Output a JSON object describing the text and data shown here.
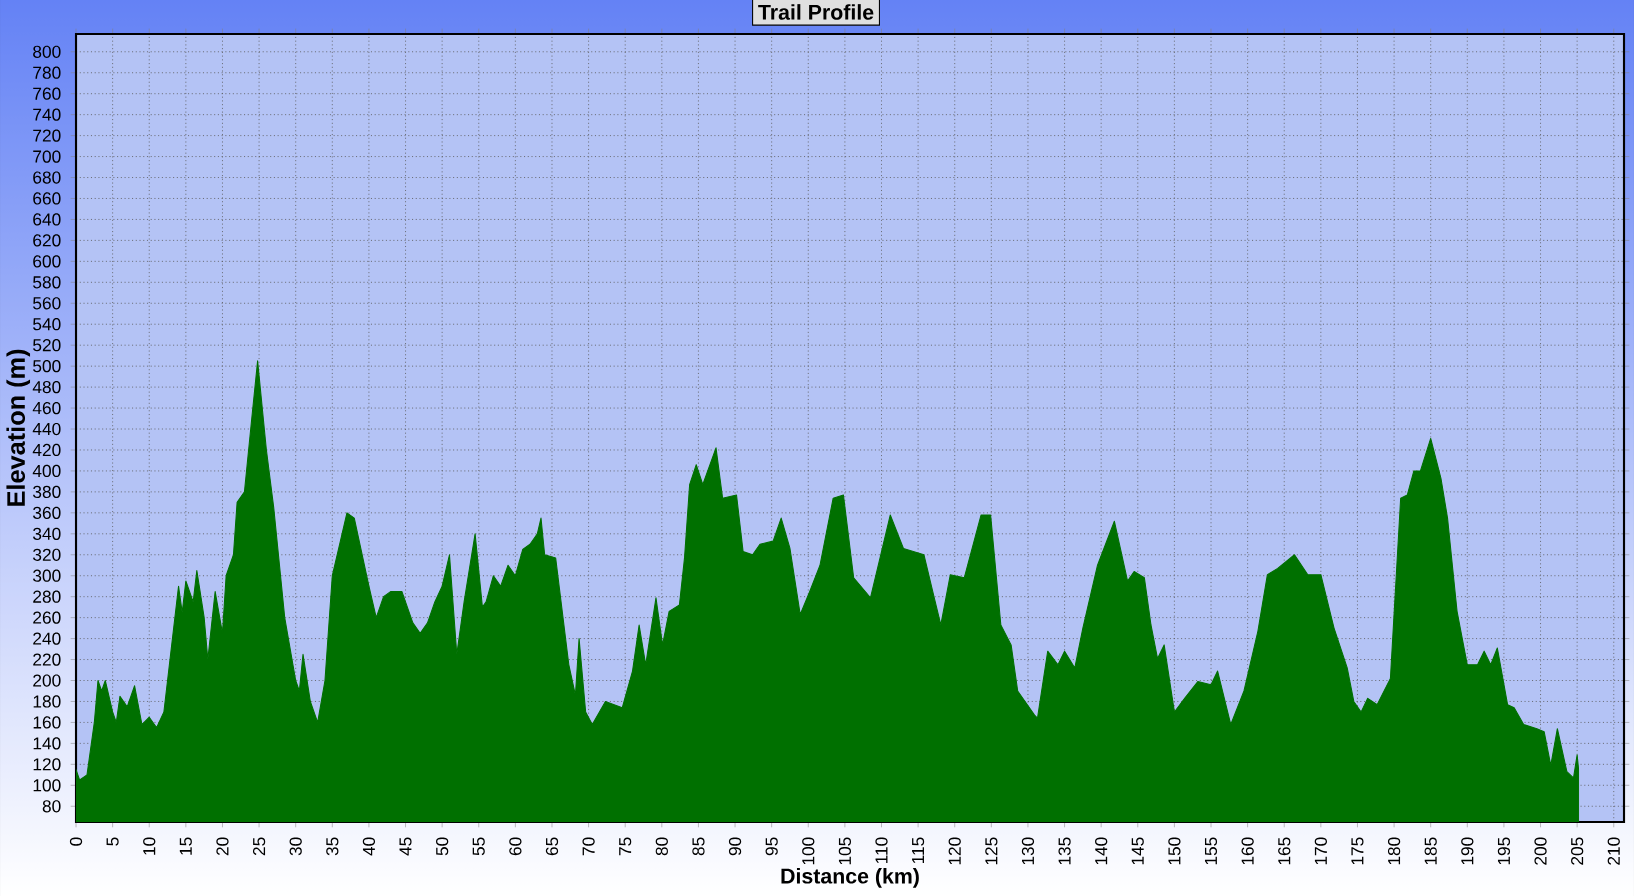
{
  "chart_data": {
    "type": "area",
    "title": "Trail Profile",
    "xlabel": "Distance (km)",
    "ylabel": "Elevation (m)",
    "x": [
      0,
      0.5,
      1.5,
      2.5,
      3,
      3.5,
      4,
      5,
      5.5,
      6,
      7,
      8,
      9,
      10,
      11,
      12,
      13,
      14,
      14.5,
      15,
      16,
      16.5,
      17.5,
      18,
      19,
      20,
      20.5,
      21.5,
      22,
      23,
      24,
      24.8,
      26,
      27,
      27.5,
      28.5,
      30,
      30.5,
      31,
      32,
      33,
      34,
      35,
      36,
      37,
      38,
      40,
      41,
      42,
      43,
      44.5,
      46,
      47,
      48,
      49,
      50,
      51,
      52,
      53,
      54.5,
      55.5,
      56,
      57,
      58,
      59,
      60,
      61,
      62,
      63,
      63.5,
      64,
      65.5,
      67.3,
      68.2,
      68.7,
      69.6,
      70.5,
      72.3,
      74.6,
      76,
      76.9,
      77.8,
      79.2,
      80.1,
      81,
      82.4,
      83.1,
      83.8,
      84.7,
      85.6,
      87.4,
      88.3,
      90.2,
      91.1,
      92.4,
      93.4,
      95.2,
      96.3,
      97.5,
      98.9,
      100.2,
      101.6,
      103.4,
      104.8,
      106.2,
      108.5,
      109.8,
      111.2,
      113,
      115.8,
      117.2,
      118.1,
      119.4,
      121.3,
      123.6,
      124.9,
      126.3,
      127.7,
      128.6,
      130.9,
      131.3,
      132.7,
      134.1,
      135,
      136.4,
      137.5,
      139.5,
      141.8,
      143.6,
      144.5,
      145.9,
      146.8,
      147.7,
      148.6,
      150,
      151.4,
      153.2,
      155,
      155.9,
      157.7,
      159.5,
      161.4,
      162.7,
      164.1,
      166.4,
      168.2,
      170,
      171.8,
      173.6,
      174.5,
      175.5,
      176.4,
      177.7,
      179.5,
      180.9,
      181.8,
      182.7,
      183.6,
      185,
      186.4,
      187.3,
      188.6,
      190,
      191.4,
      192.3,
      193.2,
      194.1,
      195.5,
      196.4,
      197.7,
      199.5,
      200.5,
      201.4,
      202.3,
      203.6,
      204.5,
      205,
      205.2
    ],
    "values": [
      115,
      105,
      110,
      160,
      200,
      190,
      200,
      170,
      160,
      185,
      175,
      195,
      158,
      165,
      155,
      170,
      230,
      290,
      265,
      295,
      275,
      305,
      260,
      220,
      285,
      245,
      300,
      320,
      370,
      380,
      450,
      505,
      420,
      365,
      330,
      260,
      200,
      190,
      225,
      180,
      160,
      200,
      300,
      330,
      360,
      355,
      290,
      260,
      280,
      285,
      285,
      255,
      245,
      255,
      275,
      290,
      320,
      225,
      275,
      340,
      270,
      275,
      300,
      290,
      310,
      300,
      325,
      330,
      340,
      355,
      320,
      317,
      215,
      186,
      240,
      170,
      158,
      180,
      174,
      209,
      253,
      215,
      279,
      234,
      266,
      272,
      317,
      387,
      406,
      387,
      422,
      374,
      377,
      323,
      320,
      330,
      333,
      355,
      326,
      263,
      285,
      310,
      374,
      377,
      298,
      279,
      317,
      358,
      326,
      320,
      279,
      253,
      301,
      298,
      358,
      358,
      253,
      234,
      190,
      167,
      164,
      228,
      215,
      228,
      212,
      250,
      310,
      352,
      295,
      304,
      298,
      253,
      221,
      234,
      170,
      183,
      199,
      196,
      209,
      158,
      190,
      247,
      301,
      307,
      320,
      301,
      301,
      250,
      212,
      180,
      170,
      183,
      177,
      202,
      374,
      377,
      400,
      400,
      431,
      393,
      355,
      266,
      215,
      215,
      228,
      215,
      231,
      177,
      174,
      158,
      154,
      151,
      119,
      154,
      113,
      107,
      129,
      115
    ],
    "color": "#007000",
    "xlim": [
      0,
      211.4
    ],
    "ylim": [
      65,
      817
    ],
    "xticks": [
      0,
      5,
      10,
      15,
      20,
      25,
      30,
      35,
      40,
      45,
      50,
      55,
      60,
      65,
      70,
      75,
      80,
      85,
      90,
      95,
      100,
      105,
      110,
      115,
      120,
      125,
      130,
      135,
      140,
      145,
      150,
      155,
      160,
      165,
      170,
      175,
      180,
      185,
      190,
      195,
      200,
      205,
      210
    ],
    "yticks": [
      80,
      100,
      120,
      140,
      160,
      180,
      200,
      220,
      240,
      260,
      280,
      300,
      320,
      340,
      360,
      380,
      400,
      420,
      440,
      460,
      480,
      500,
      520,
      540,
      560,
      580,
      600,
      620,
      640,
      660,
      680,
      700,
      720,
      740,
      760,
      780,
      800
    ],
    "grid": true
  }
}
